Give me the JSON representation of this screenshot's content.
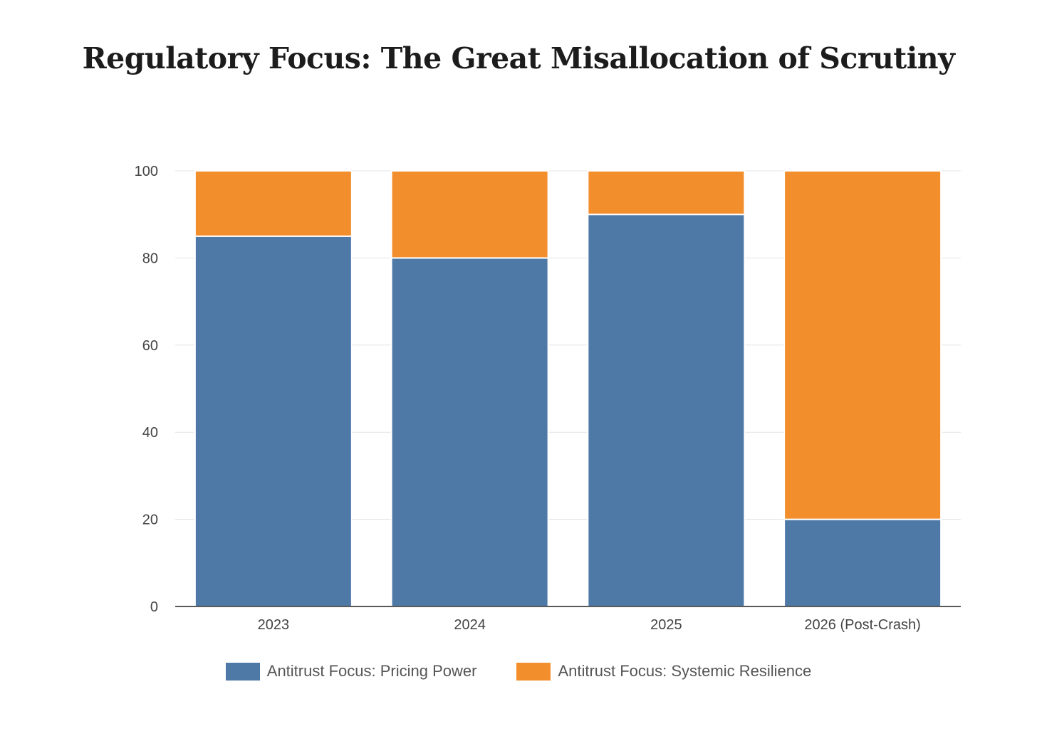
{
  "chart_data": {
    "type": "bar",
    "stacked": true,
    "title": "Regulatory Focus: The Great Misallocation of Scrutiny",
    "xlabel": "",
    "ylabel": "",
    "categories": [
      "2023",
      "2024",
      "2025",
      "2026 (Post-Crash)"
    ],
    "series": [
      {
        "name": "Antitrust Focus: Pricing Power",
        "color": "#4e79a7",
        "values": [
          85,
          80,
          90,
          20
        ]
      },
      {
        "name": "Antitrust Focus: Systemic Resilience",
        "color": "#f28e2c",
        "values": [
          15,
          20,
          10,
          80
        ]
      }
    ],
    "ylim": [
      0,
      100
    ],
    "yticks": [
      0,
      20,
      40,
      60,
      80,
      100
    ],
    "grid": true,
    "legend_position": "bottom"
  }
}
